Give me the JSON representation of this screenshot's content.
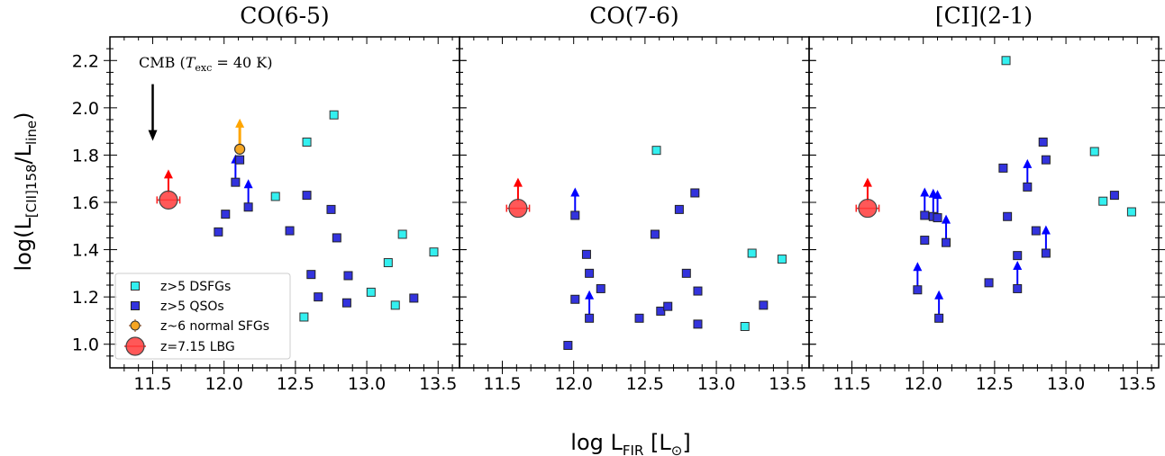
{
  "chart_data": {
    "type": "scatter",
    "panels": [
      {
        "title": "CO(6-5)",
        "dsfg": [
          [
            12.36,
            1.625
          ],
          [
            12.58,
            1.855
          ],
          [
            12.77,
            1.97
          ],
          [
            13.25,
            1.465
          ],
          [
            13.47,
            1.39
          ],
          [
            13.15,
            1.345
          ],
          [
            13.03,
            1.22
          ],
          [
            13.2,
            1.165
          ],
          [
            12.56,
            1.115
          ]
        ],
        "qso": [
          [
            11.96,
            1.475
          ],
          [
            12.01,
            1.55
          ],
          [
            12.08,
            1.685
          ],
          [
            12.11,
            1.78
          ],
          [
            12.17,
            1.58
          ],
          [
            12.46,
            1.48
          ],
          [
            12.58,
            1.63
          ],
          [
            12.61,
            1.295
          ],
          [
            12.66,
            1.2
          ],
          [
            12.75,
            1.57
          ],
          [
            12.79,
            1.45
          ],
          [
            12.87,
            1.29
          ],
          [
            12.86,
            1.175
          ],
          [
            13.33,
            1.195
          ]
        ],
        "qso_limits": [
          [
            12.08,
            1.685
          ],
          [
            12.17,
            1.58
          ]
        ],
        "normal_sfg": [
          [
            12.11,
            1.825
          ]
        ],
        "lbg": [
          [
            11.61,
            1.61
          ]
        ],
        "lbg_xerr": 0.08,
        "annotation": {
          "prefix": "CMB (",
          "symbol": "T",
          "subscript": "exc",
          "suffix": " = 40 K)",
          "arrow_x": 11.5,
          "arrow_y_from": 2.1,
          "arrow_y_to": 1.86
        }
      },
      {
        "title": "CO(7-6)",
        "dsfg": [
          [
            12.58,
            1.82
          ],
          [
            13.25,
            1.385
          ],
          [
            13.46,
            1.36
          ],
          [
            13.2,
            1.075
          ]
        ],
        "qso": [
          [
            12.01,
            1.545
          ],
          [
            11.96,
            0.995
          ],
          [
            12.01,
            1.19
          ],
          [
            12.09,
            1.38
          ],
          [
            12.11,
            1.3
          ],
          [
            12.11,
            1.11
          ],
          [
            12.19,
            1.235
          ],
          [
            12.46,
            1.11
          ],
          [
            12.57,
            1.465
          ],
          [
            12.61,
            1.14
          ],
          [
            12.66,
            1.16
          ],
          [
            12.74,
            1.57
          ],
          [
            12.79,
            1.3
          ],
          [
            12.85,
            1.64
          ],
          [
            12.87,
            1.225
          ],
          [
            12.87,
            1.085
          ],
          [
            13.33,
            1.165
          ]
        ],
        "qso_limits": [
          [
            12.01,
            1.545
          ],
          [
            12.11,
            1.11
          ]
        ],
        "normal_sfg": [],
        "lbg": [
          [
            11.61,
            1.575
          ]
        ],
        "lbg_xerr": 0.08
      },
      {
        "title": "[CI](2-1)",
        "dsfg": [
          [
            12.58,
            2.2
          ],
          [
            13.2,
            1.815
          ],
          [
            13.26,
            1.605
          ],
          [
            13.46,
            1.56
          ]
        ],
        "qso": [
          [
            12.01,
            1.545
          ],
          [
            12.01,
            1.44
          ],
          [
            11.96,
            1.23
          ],
          [
            12.07,
            1.54
          ],
          [
            12.1,
            1.535
          ],
          [
            12.11,
            1.11
          ],
          [
            12.16,
            1.43
          ],
          [
            12.46,
            1.26
          ],
          [
            12.56,
            1.745
          ],
          [
            12.59,
            1.54
          ],
          [
            12.66,
            1.375
          ],
          [
            12.66,
            1.235
          ],
          [
            12.73,
            1.665
          ],
          [
            12.79,
            1.48
          ],
          [
            12.84,
            1.855
          ],
          [
            12.86,
            1.78
          ],
          [
            12.86,
            1.385
          ],
          [
            13.34,
            1.63
          ]
        ],
        "qso_limits": [
          [
            12.01,
            1.545
          ],
          [
            11.96,
            1.23
          ],
          [
            12.07,
            1.54
          ],
          [
            12.1,
            1.535
          ],
          [
            12.11,
            1.11
          ],
          [
            12.16,
            1.43
          ],
          [
            12.66,
            1.235
          ],
          [
            12.73,
            1.665
          ],
          [
            12.86,
            1.385
          ]
        ],
        "normal_sfg": [],
        "lbg": [
          [
            11.61,
            1.575
          ]
        ],
        "lbg_xerr": 0.08
      }
    ],
    "xlim": [
      11.2,
      13.65
    ],
    "ylim": [
      0.9,
      2.3
    ],
    "xticks": [
      "11.5",
      "12.0",
      "12.5",
      "13.0",
      "13.5"
    ],
    "yticks": [
      "1.0",
      "1.2",
      "1.4",
      "1.6",
      "1.8",
      "2.0",
      "2.2"
    ],
    "xlabel": {
      "main": "log L",
      "sub": "FIR",
      "unit_prefix": " [L",
      "unit_sub": "⊙",
      "unit_suffix": "]"
    },
    "ylabel": {
      "main": "log(L",
      "sub": "[CII]158",
      "mid": "/L",
      "sub2": "line",
      "end": ")"
    },
    "legend": {
      "placement": "lower-left",
      "entries": [
        "z>5 DSFGs",
        "z>5 QSOs",
        "z~6 normal SFGs",
        "z=7.15 LBG"
      ]
    },
    "colors": {
      "dsfg": "#33f0f0",
      "qso": "#3333dd",
      "qso_arrow": "#0000ff",
      "normal_sfg": "#f5a623",
      "normal_sfg_arrow": "#ffa500",
      "lbg": "#ff3b3b",
      "lbg_arrow": "#ff0000"
    }
  }
}
